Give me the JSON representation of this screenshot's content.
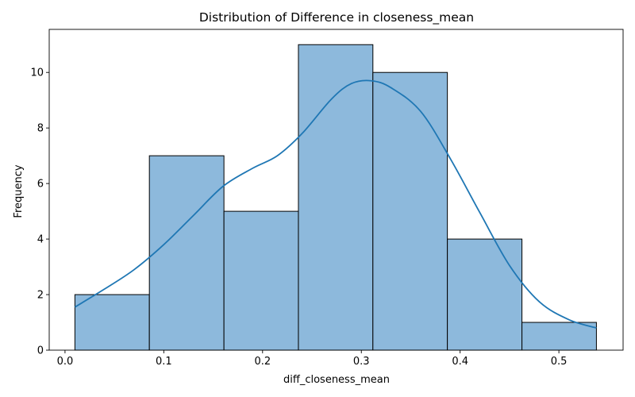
{
  "colors": {
    "bar_fill": "#8db9dc",
    "bar_edge": "#000000",
    "kde_line": "#1f77b4",
    "axis": "#000000"
  },
  "chart_data": {
    "type": "histogram",
    "title": "Distribution of Difference in closeness_mean",
    "xlabel": "diff_closeness_mean",
    "ylabel": "Frequency",
    "xlim": [
      -0.016,
      0.565
    ],
    "ylim": [
      0,
      11.55
    ],
    "xticks": [
      0.0,
      0.1,
      0.2,
      0.3,
      0.4,
      0.5
    ],
    "xtick_labels": [
      "0.0",
      "0.1",
      "0.2",
      "0.3",
      "0.4",
      "0.5"
    ],
    "yticks": [
      0,
      2,
      4,
      6,
      8,
      10
    ],
    "ytick_labels": [
      "0",
      "2",
      "4",
      "6",
      "8",
      "10"
    ],
    "bin_edges": [
      0.01,
      0.0854,
      0.1609,
      0.2363,
      0.3117,
      0.3871,
      0.4626,
      0.538
    ],
    "counts": [
      2,
      7,
      5,
      11,
      10,
      4,
      1
    ],
    "grid": false,
    "kde": {
      "x": [
        0.01,
        0.04,
        0.07,
        0.1,
        0.13,
        0.16,
        0.19,
        0.215,
        0.24,
        0.27,
        0.29,
        0.31,
        0.33,
        0.36,
        0.39,
        0.42,
        0.45,
        0.48,
        0.51,
        0.538
      ],
      "y": [
        1.55,
        2.2,
        2.9,
        3.8,
        4.85,
        5.9,
        6.55,
        7.0,
        7.8,
        9.05,
        9.6,
        9.7,
        9.45,
        8.6,
        6.9,
        4.95,
        3.05,
        1.75,
        1.1,
        0.8
      ]
    }
  }
}
